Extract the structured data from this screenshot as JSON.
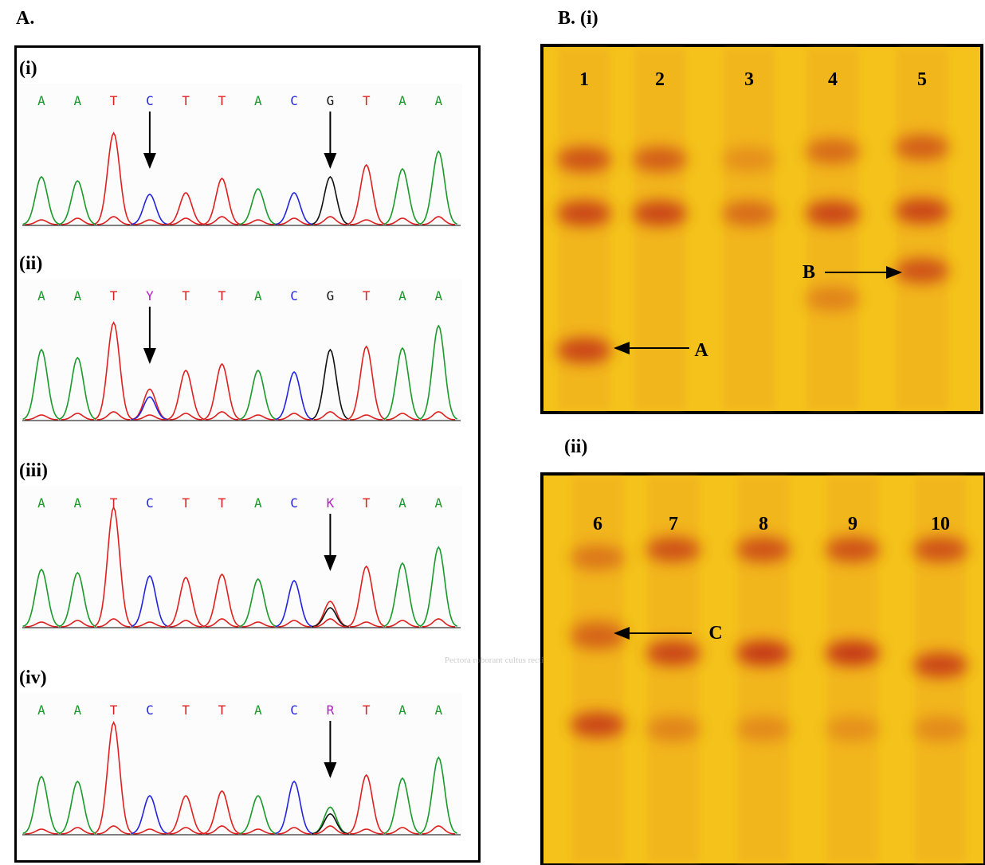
{
  "panel_a": {
    "label": "A.",
    "traces": [
      {
        "label": "(i)",
        "bases": [
          "A",
          "A",
          "T",
          "C",
          "T",
          "T",
          "A",
          "C",
          "G",
          "T",
          "A",
          "A"
        ]
      },
      {
        "label": "(ii)",
        "bases": [
          "A",
          "A",
          "T",
          "Y",
          "T",
          "T",
          "A",
          "C",
          "G",
          "T",
          "A",
          "A"
        ]
      },
      {
        "label": "(iii)",
        "bases": [
          "A",
          "A",
          "T",
          "C",
          "T",
          "T",
          "A",
          "C",
          "K",
          "T",
          "A",
          "A"
        ]
      },
      {
        "label": "(iv)",
        "bases": [
          "A",
          "A",
          "T",
          "C",
          "T",
          "T",
          "A",
          "C",
          "R",
          "T",
          "A",
          "A"
        ]
      }
    ]
  },
  "panel_b": {
    "gels": [
      {
        "label": "B. (i)",
        "lanes": [
          "1",
          "2",
          "3",
          "4",
          "5"
        ],
        "bands": [
          "A",
          "B"
        ]
      },
      {
        "label": "(ii)",
        "lanes": [
          "6",
          "7",
          "8",
          "9",
          "10"
        ],
        "bands": [
          "C"
        ]
      }
    ]
  },
  "watermark": "Pectora roborant cultus recti"
}
